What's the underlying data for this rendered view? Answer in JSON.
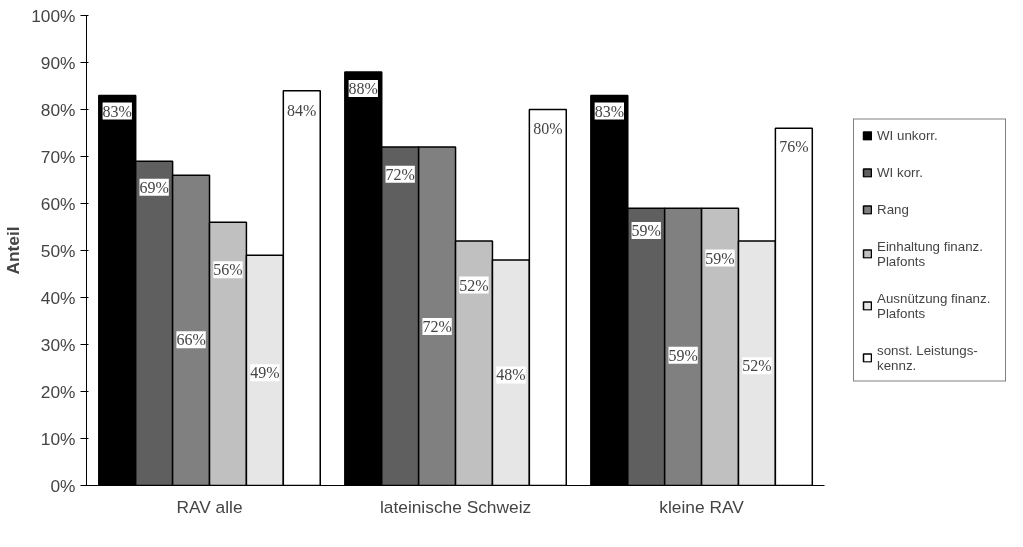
{
  "chart_data": {
    "type": "bar",
    "ylabel": "Anteil",
    "categories": [
      "RAV alle",
      "lateinische Schweiz",
      "kleine RAV"
    ],
    "series": [
      {
        "name": "WI unkorr.",
        "color": "#000000",
        "values": [
          83,
          88,
          83
        ],
        "value_labels": [
          "83%",
          "88%",
          "83%"
        ]
      },
      {
        "name": "WI korr.",
        "color": "#5f5f5f",
        "values": [
          69,
          72,
          59
        ],
        "value_labels": [
          "69%",
          "72%",
          "59%"
        ]
      },
      {
        "name": "Rang",
        "color": "#808080",
        "values": [
          66,
          72,
          59
        ],
        "value_labels": [
          "66%",
          "72%",
          "59%"
        ]
      },
      {
        "name": "Einhaltung finanz. Plafonts",
        "color": "#c0c0c0",
        "values": [
          56,
          52,
          59
        ],
        "value_labels": [
          "56%",
          "52%",
          "59%"
        ]
      },
      {
        "name": "Ausnützung finanz. Plafonts",
        "color": "#e6e6e6",
        "values": [
          49,
          48,
          52
        ],
        "value_labels": [
          "49%",
          "48%",
          "52%"
        ]
      },
      {
        "name": "sonst. Leistungs-kennz.",
        "color": "#ffffff",
        "values": [
          84,
          80,
          76
        ],
        "value_labels": [
          "84%",
          "80%",
          "76%"
        ]
      }
    ],
    "ylim": [
      0,
      100
    ],
    "yticks": [
      {
        "value": 0,
        "label": "0%"
      },
      {
        "value": 10,
        "label": "10%"
      },
      {
        "value": 20,
        "label": "20%"
      },
      {
        "value": 30,
        "label": "30%"
      },
      {
        "value": 40,
        "label": "40%"
      },
      {
        "value": 50,
        "label": "50%"
      },
      {
        "value": 60,
        "label": "60%"
      },
      {
        "value": 70,
        "label": "70%"
      },
      {
        "value": 80,
        "label": "80%"
      },
      {
        "value": 90,
        "label": "90%"
      },
      {
        "value": 100,
        "label": "100%"
      }
    ],
    "grid": false,
    "legend": "right"
  }
}
